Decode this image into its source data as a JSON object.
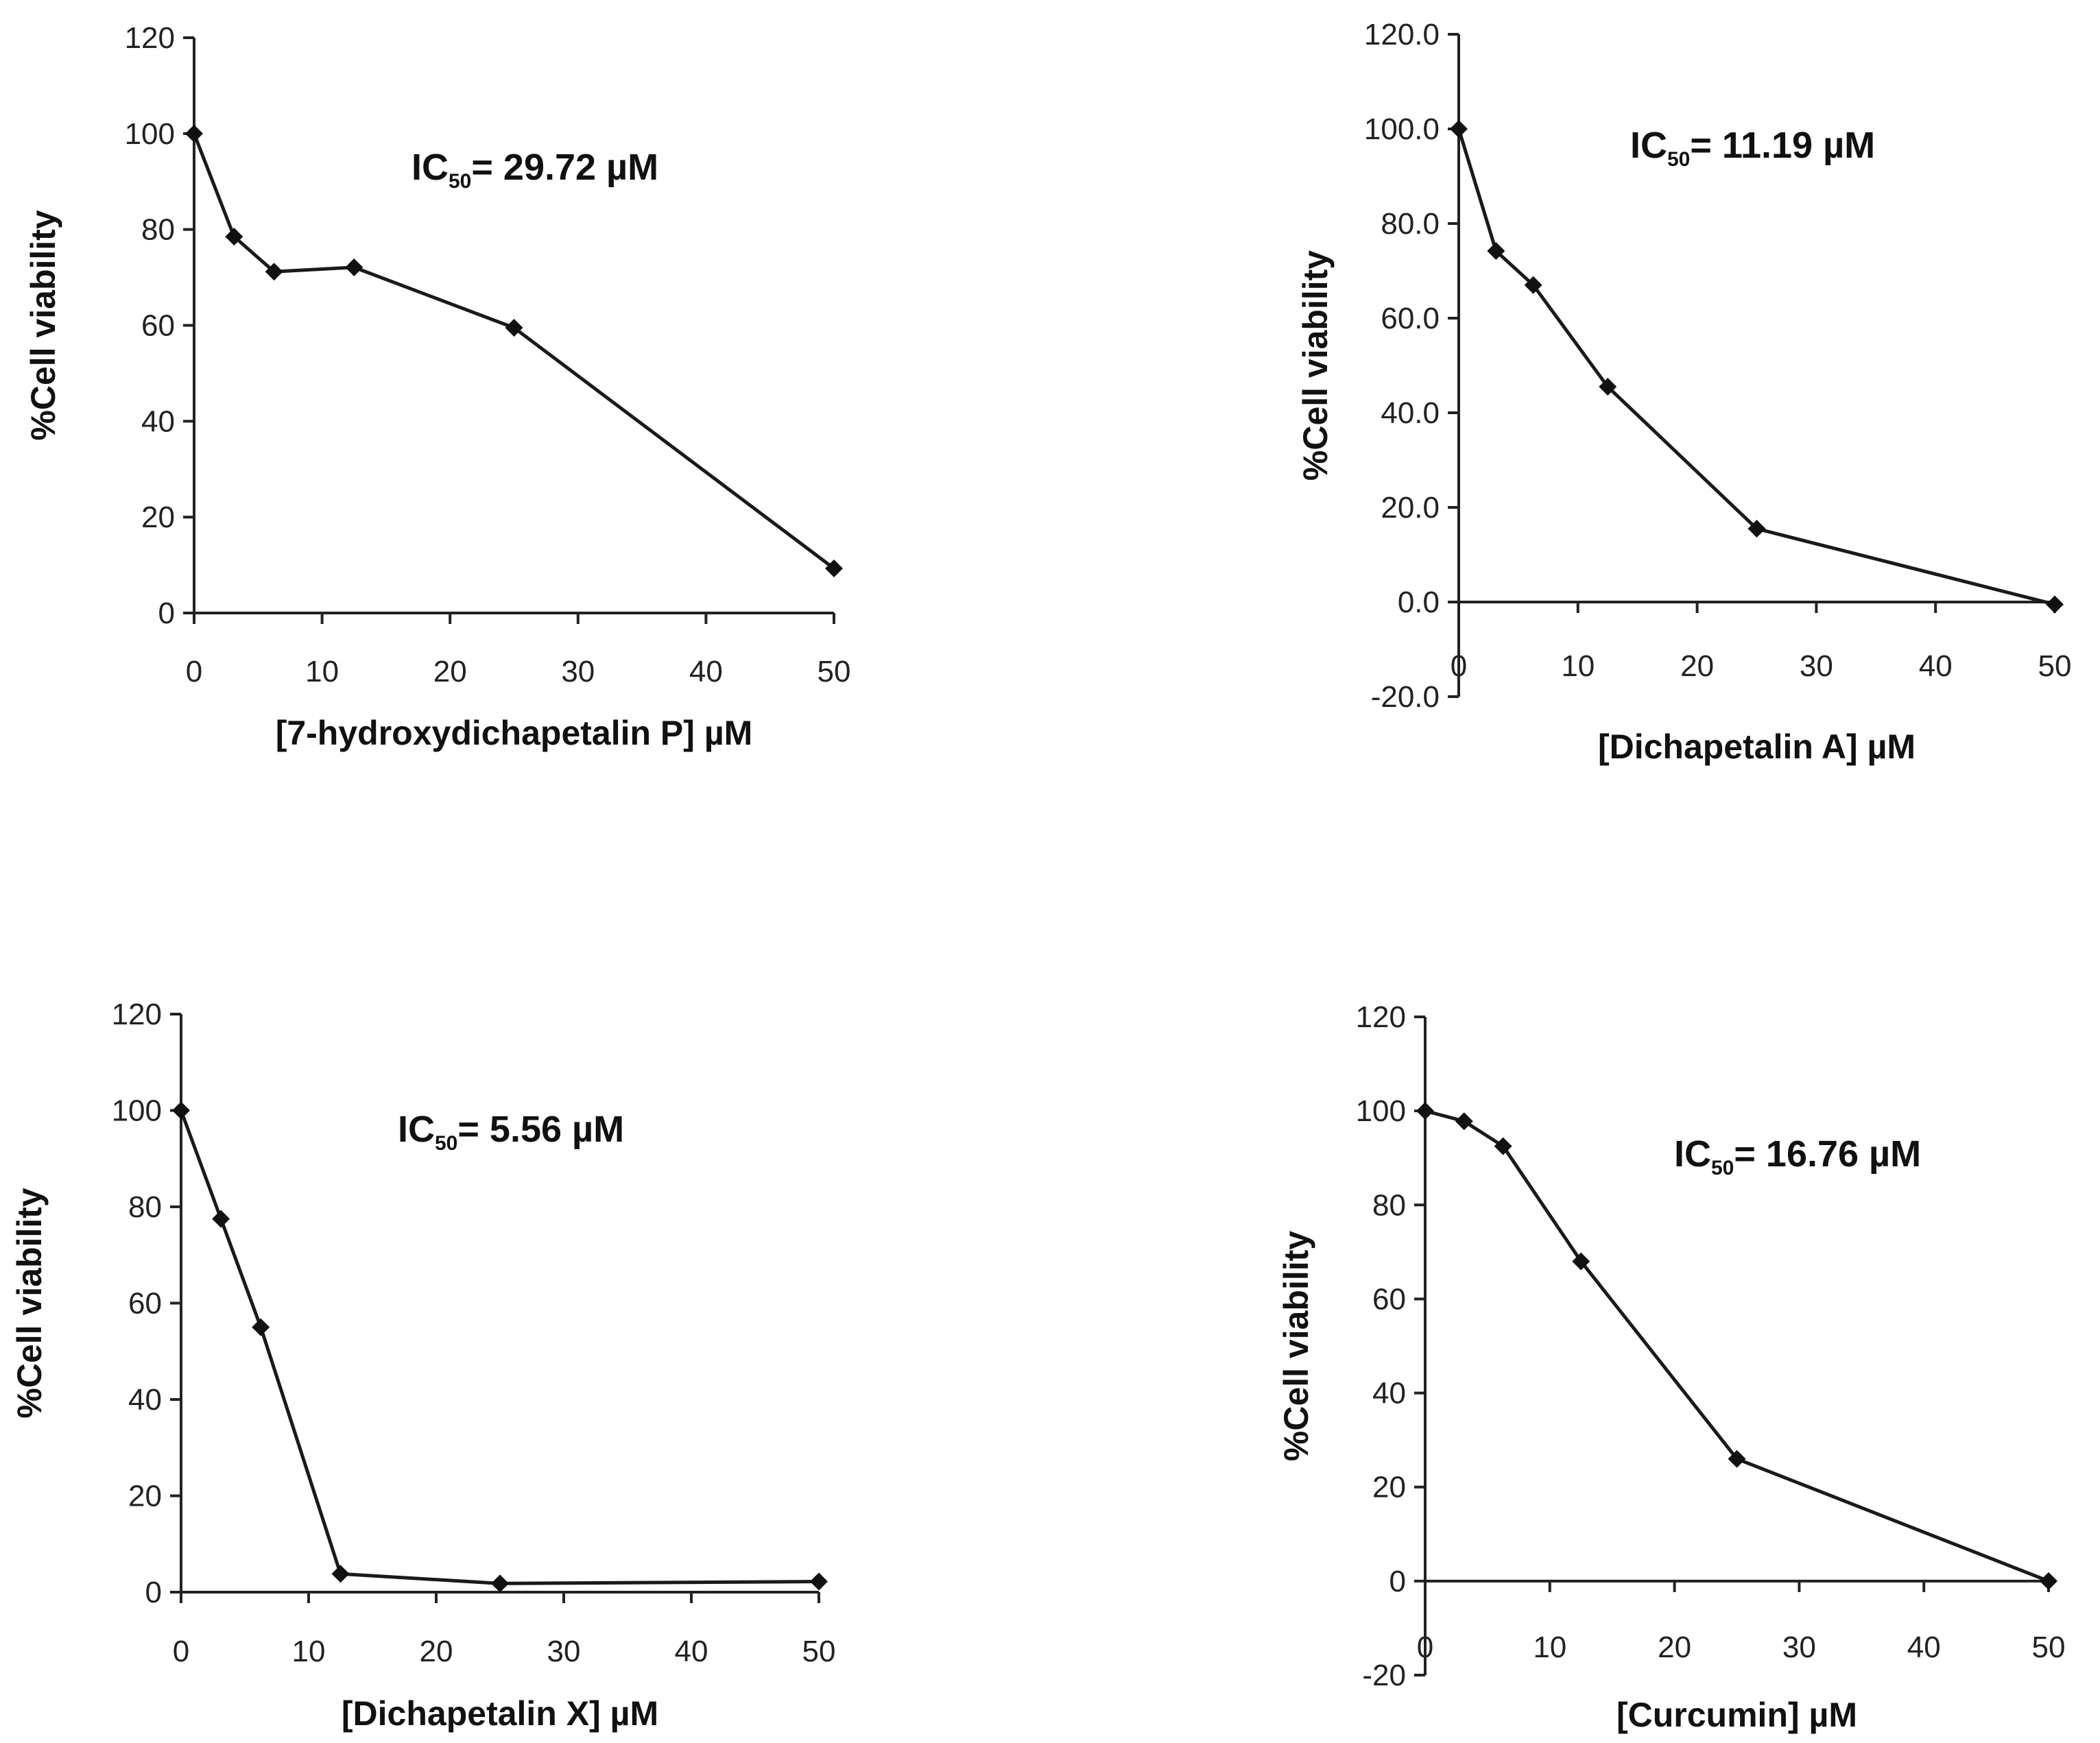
{
  "chart_data": [
    {
      "type": "line",
      "x": [
        0,
        3.125,
        6.25,
        12.5,
        25,
        50
      ],
      "values": [
        100,
        78.5,
        71.2,
        72.1,
        59.5,
        9.3
      ],
      "ylabel": "%Cell viability",
      "xlabel": "[7-hydroxydichapetalin P] µM",
      "annotation": {
        "prefix": "IC",
        "subscript": "50",
        "text": "= 29.72 µM"
      },
      "xlim": [
        0,
        50
      ],
      "ylim": [
        0,
        120
      ],
      "xticks": [
        "0",
        "10",
        "20",
        "30",
        "40",
        "50"
      ],
      "yticks": [
        "0",
        "20",
        "40",
        "60",
        "80",
        "100",
        "120"
      ],
      "ytick_values": [
        0,
        20,
        40,
        60,
        80,
        100,
        120
      ]
    },
    {
      "type": "line",
      "x": [
        0,
        3.125,
        6.25,
        12.5,
        25,
        50
      ],
      "values": [
        100,
        74.2,
        67,
        45.5,
        15.5,
        -0.5
      ],
      "ylabel": "%Cell viability",
      "xlabel": "[Dichapetalin A] µM",
      "annotation": {
        "prefix": "IC",
        "subscript": "50",
        "text": "= 11.19 µM"
      },
      "xlim": [
        0,
        50
      ],
      "ylim": [
        -20,
        120
      ],
      "xticks": [
        "0",
        "10",
        "20",
        "30",
        "40",
        "50"
      ],
      "yticks": [
        "-20.0",
        "0.0",
        "20.0",
        "40.0",
        "60.0",
        "80.0",
        "100.0",
        "120.0"
      ],
      "ytick_values": [
        -20,
        0,
        20,
        40,
        60,
        80,
        100,
        120
      ]
    },
    {
      "type": "line",
      "x": [
        0,
        3.125,
        6.25,
        12.5,
        25,
        50
      ],
      "values": [
        100,
        77.5,
        55,
        3.8,
        1.8,
        2.2
      ],
      "ylabel": "%Cell viability",
      "xlabel": "[Dichapetalin X] µM",
      "annotation": {
        "prefix": "IC",
        "subscript": "50",
        "text": "= 5.56 µM"
      },
      "xlim": [
        0,
        50
      ],
      "ylim": [
        0,
        120
      ],
      "xticks": [
        "0",
        "10",
        "20",
        "30",
        "40",
        "50"
      ],
      "yticks": [
        "0",
        "20",
        "40",
        "60",
        "80",
        "100",
        "120"
      ],
      "ytick_values": [
        0,
        20,
        40,
        60,
        80,
        100,
        120
      ]
    },
    {
      "type": "line",
      "x": [
        0,
        3.125,
        6.25,
        12.5,
        25,
        50
      ],
      "values": [
        100,
        97.8,
        92.5,
        68,
        26,
        0
      ],
      "ylabel": "%Cell viability",
      "xlabel": "[Curcumin] µM",
      "annotation": {
        "prefix": "IC",
        "subscript": "50",
        "text": "= 16.76 µM"
      },
      "xlim": [
        0,
        50
      ],
      "ylim": [
        -20,
        120
      ],
      "xticks": [
        "0",
        "10",
        "20",
        "30",
        "40",
        "50"
      ],
      "yticks": [
        "-20",
        "0",
        "20",
        "40",
        "60",
        "80",
        "100",
        "120"
      ],
      "ytick_values": [
        -20,
        0,
        20,
        40,
        60,
        80,
        100,
        120
      ]
    }
  ],
  "colors": {
    "line": "#1a1a1a",
    "marker": "#111111",
    "axis": "#222222"
  }
}
